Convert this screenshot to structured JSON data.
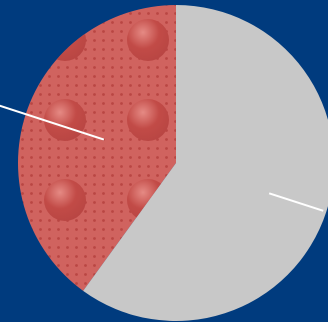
{
  "colors": {
    "background": "#003b7e",
    "slice_gray": "#c8c8c8",
    "slice_red_base": "#d0635f",
    "slice_red_dot": "#b94643",
    "slice_red_dome": "#c24b47",
    "dome_highlight": "#e58a84",
    "leader_line": "#ffffff"
  },
  "chart_data": {
    "type": "pie",
    "title": "",
    "legend": "none",
    "slices": [
      {
        "label": "",
        "value": 0.4,
        "fill": "textured-red"
      },
      {
        "label": "",
        "value": 0.6,
        "fill": "gray"
      }
    ],
    "start_angle_deg": 0,
    "direction": "counterclockwise",
    "annotations": [
      {
        "kind": "leader-line",
        "slice_index": 0,
        "text": ""
      },
      {
        "kind": "leader-line",
        "slice_index": 1,
        "text": ""
      }
    ]
  }
}
